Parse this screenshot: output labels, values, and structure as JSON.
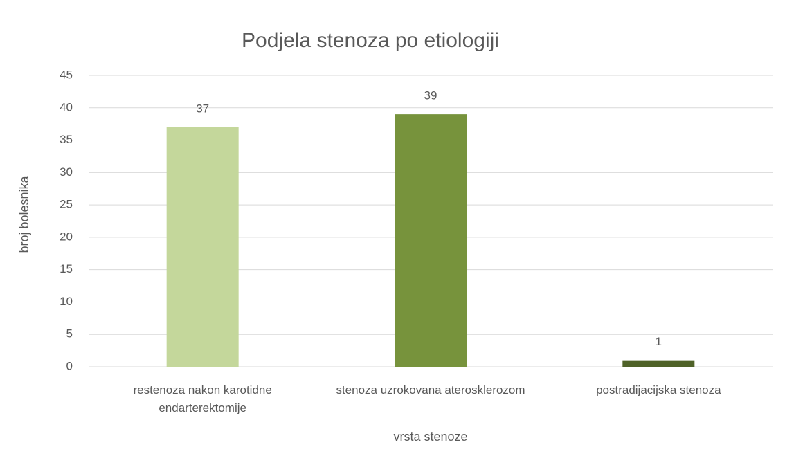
{
  "chart_data": {
    "type": "bar",
    "title": "Podjela stenoza po etiologiji",
    "x_label": "vrsta stenoze",
    "y_label": "broj bolesnika",
    "categories": [
      "restenoza nakon karotidne endarterektomije",
      "stenoza uzrokovana aterosklerozom",
      "postradijacijska stenoza"
    ],
    "values": [
      37,
      39,
      1
    ],
    "colors": [
      "#c4d79b",
      "#77933c",
      "#4f6228"
    ],
    "ylim": [
      0,
      45
    ],
    "yticks": [
      0,
      5,
      10,
      15,
      20,
      25,
      30,
      35,
      40,
      45
    ],
    "grid": true
  }
}
